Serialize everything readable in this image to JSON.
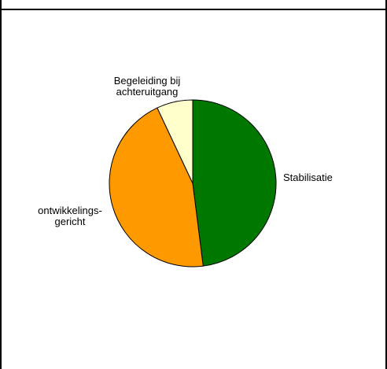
{
  "chart_data": {
    "type": "pie",
    "slices": [
      {
        "label": "Stabilisatie",
        "value": 48,
        "color": "#007800"
      },
      {
        "label": "ontwikkelings-\ngericht",
        "value": 45,
        "color": "#ff9900"
      },
      {
        "label": "Begeleiding bij\nachteruitgang",
        "value": 7,
        "color": "#ffffcc"
      }
    ],
    "title": "",
    "legend": "none",
    "start_angle": "12 o'clock, clockwise"
  }
}
